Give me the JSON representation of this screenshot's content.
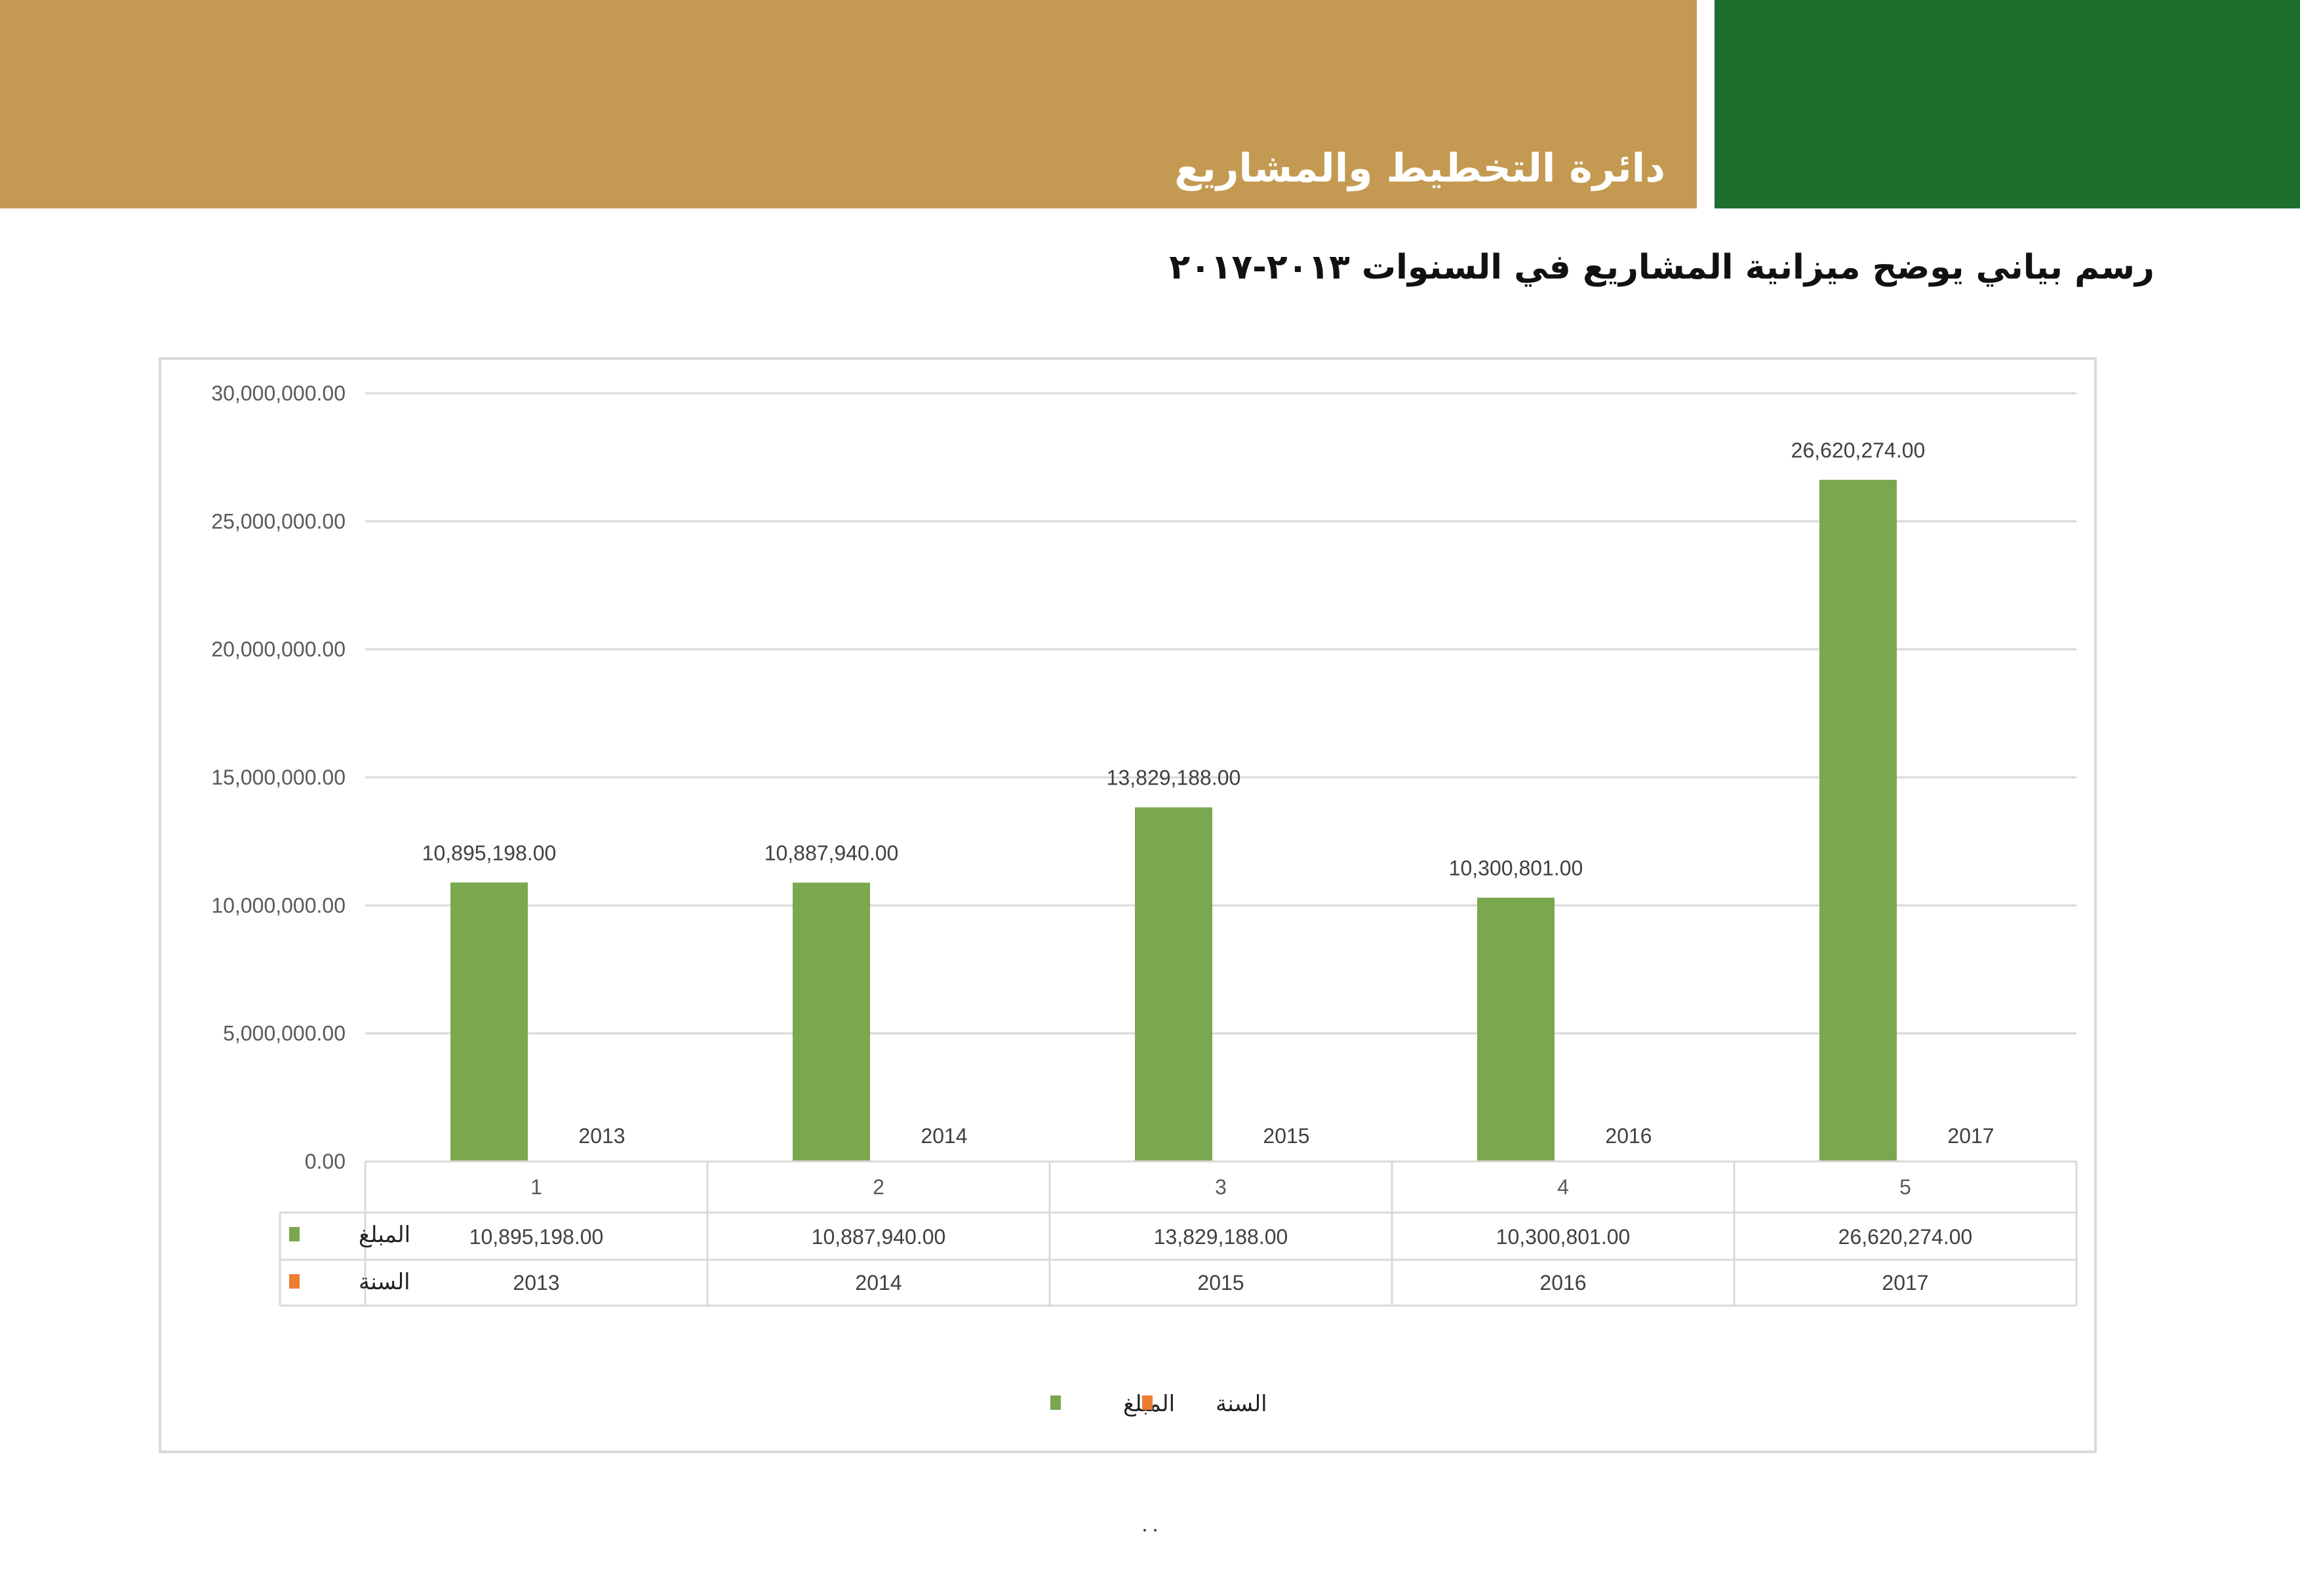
{
  "header": {
    "department": "دائرة التخطيط والمشاريع",
    "colors": {
      "gold": "#c49a52",
      "green": "#1d6f2d"
    }
  },
  "heading": "رسم بياني يوضح ميزانية المشاريع في السنوات ٢٠١٣-٢٠١٧",
  "page_number": "٠٠",
  "chart_data": {
    "type": "bar",
    "categories": [
      "1",
      "2",
      "3",
      "4",
      "5"
    ],
    "series": [
      {
        "name": "المبلغ",
        "color": "#7ba74f",
        "values": [
          10895198.0,
          10887940.0,
          13829188.0,
          10300801.0,
          26620274.0
        ],
        "labels": [
          "10,895,198.00",
          "10,887,940.00",
          "13,829,188.00",
          "10,300,801.00",
          "26,620,274.00"
        ]
      },
      {
        "name": "السنة",
        "color": "#ed7d31",
        "values": [
          2013,
          2014,
          2015,
          2016,
          2017
        ],
        "labels": [
          "2013",
          "2014",
          "2015",
          "2016",
          "2017"
        ]
      }
    ],
    "ylim": [
      0,
      30000000
    ],
    "yticks": [
      {
        "value": 0,
        "label": "0.00"
      },
      {
        "value": 5000000,
        "label": "5,000,000.00"
      },
      {
        "value": 10000000,
        "label": "10,000,000.00"
      },
      {
        "value": 15000000,
        "label": "15,000,000.00"
      },
      {
        "value": 20000000,
        "label": "20,000,000.00"
      },
      {
        "value": 25000000,
        "label": "25,000,000.00"
      },
      {
        "value": 30000000,
        "label": "30,000,000.00"
      }
    ],
    "grid": true,
    "data_table": true,
    "legend_position": "bottom"
  }
}
